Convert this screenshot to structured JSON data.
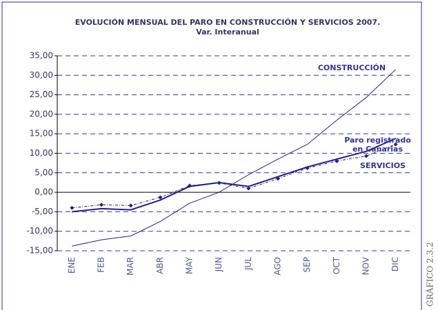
{
  "chart_data": {
    "type": "line",
    "title": "EVOLUCIÓN MENSUAL DEL PARO EN CONSTRUCCIÓN Y SERVICIOS 2007.",
    "subtitle": "Var. Interanual",
    "side_label": "GRÁFICO  2.3.2",
    "categories": [
      "ENE",
      "FEB",
      "MAR",
      "ABR",
      "MAY",
      "JUN",
      "JUL",
      "AGO",
      "SEP",
      "OCT",
      "NOV",
      "DIC"
    ],
    "series": [
      {
        "name": "CONSTRUCCIÓN",
        "color": "#1f1f9a",
        "style": "thin",
        "values": [
          -13.8,
          -12.2,
          -11.2,
          -7.5,
          -2.8,
          0,
          4.5,
          8.5,
          12.3,
          18.5,
          24.3,
          31.5
        ]
      },
      {
        "name": "Paro registrado en Canarias",
        "color": "#1f1f9a",
        "style": "thick",
        "values": [
          -5,
          -4.2,
          -4.5,
          -2,
          1.5,
          2.5,
          1.5,
          4,
          6.5,
          8.5,
          10.5,
          13.8
        ]
      },
      {
        "name": "SERVICIOS",
        "color": "#1f1f9a",
        "style": "dashed-markers",
        "values": [
          -4,
          -3.2,
          -3.4,
          -1.3,
          1.7,
          2.4,
          1,
          3.5,
          6.2,
          8,
          9.3,
          12.3
        ]
      }
    ],
    "ylim": [
      -15,
      35
    ],
    "yticks": [
      {
        "value": -15,
        "label": "-15,00"
      },
      {
        "value": -10,
        "label": "-10,00"
      },
      {
        "value": -5,
        "label": "-5,00"
      },
      {
        "value": 0,
        "label": "0,00"
      },
      {
        "value": 5,
        "label": "5,00"
      },
      {
        "value": 10,
        "label": "10,00"
      },
      {
        "value": 15,
        "label": "15,00"
      },
      {
        "value": 20,
        "label": "20,00"
      },
      {
        "value": 25,
        "label": "25,00"
      },
      {
        "value": 30,
        "label": "30,00"
      },
      {
        "value": 35,
        "label": "35,00"
      }
    ],
    "grid": true
  }
}
